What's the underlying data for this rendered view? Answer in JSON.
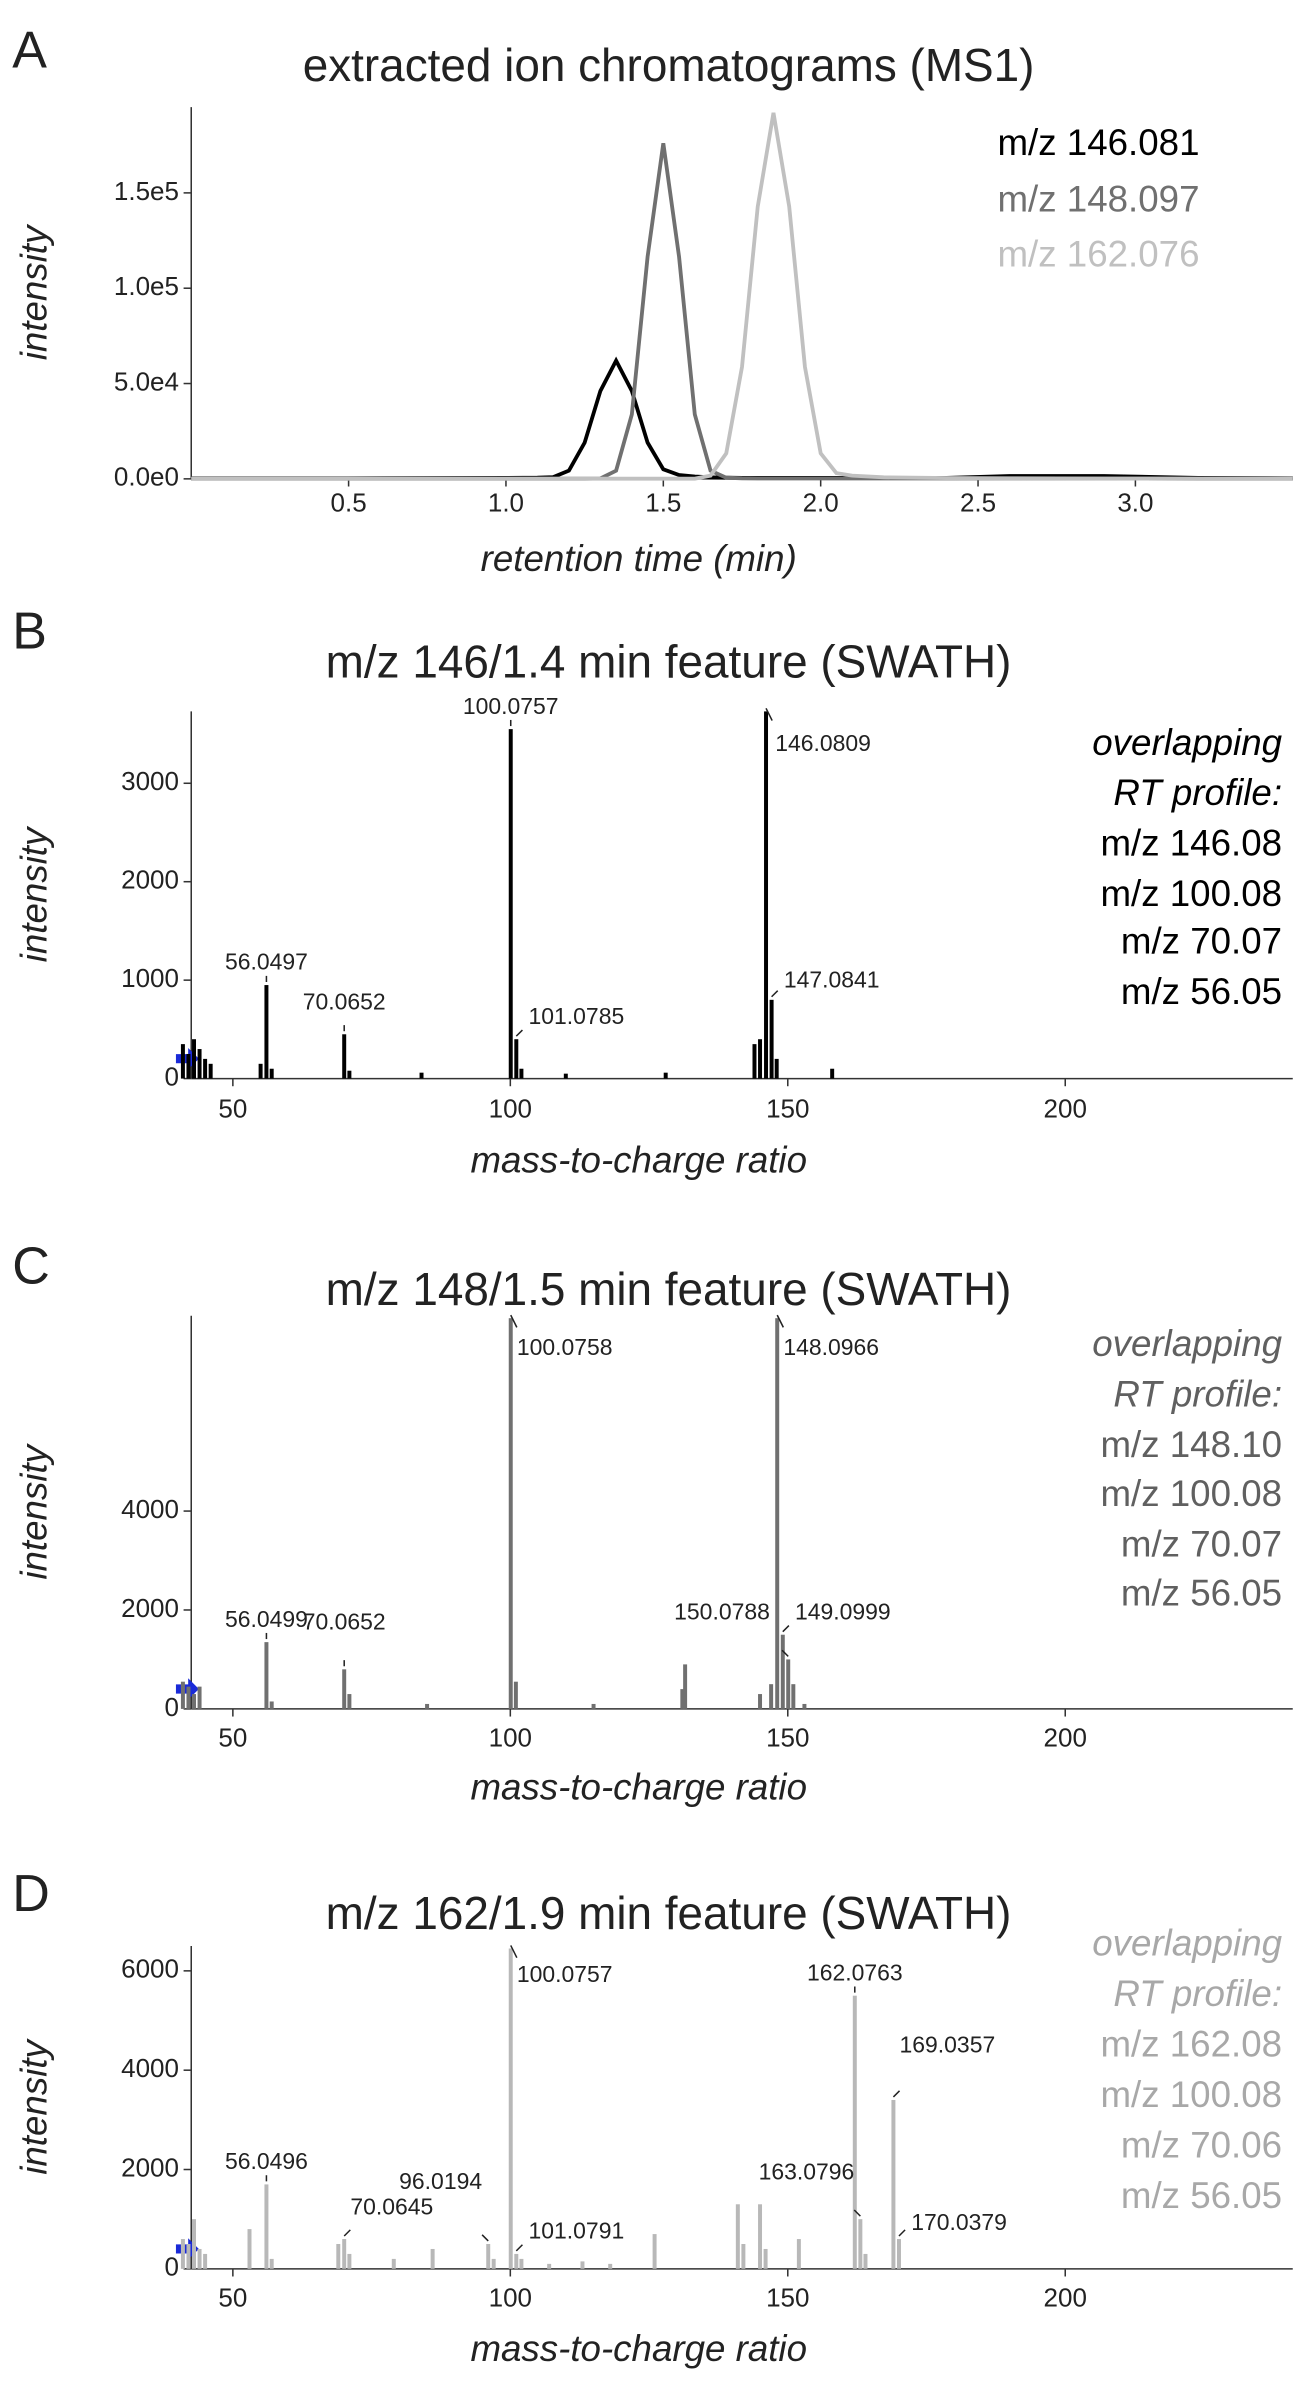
{
  "chart_data": [
    {
      "type": "line",
      "panel_label": "A",
      "title": "extracted ion chromatograms (MS1)",
      "x_label": "retention time (min)",
      "y_label": "intensity",
      "xlim": [
        0,
        3.5
      ],
      "ylim": [
        0,
        195000
      ],
      "xticks": [
        0.5,
        {
          "value": 1,
          "label": "1.0"
        },
        1.5,
        {
          "value": 2,
          "label": "2.0"
        },
        2.5,
        {
          "value": 3,
          "label": "3.0"
        }
      ],
      "yticks": [
        {
          "value": 0,
          "label": "0.0e0"
        },
        {
          "value": 50000,
          "label": "5.0e4"
        },
        {
          "value": 100000,
          "label": "1.0e5"
        },
        {
          "value": 150000,
          "label": "1.5e5"
        }
      ],
      "x": [
        0,
        0.5,
        1.0,
        1.1,
        1.15,
        1.2,
        1.25,
        1.3,
        1.35,
        1.4,
        1.45,
        1.5,
        1.55,
        1.6,
        1.65,
        1.7,
        1.75,
        1.8,
        1.85,
        1.9,
        1.95,
        2.0,
        2.05,
        2.1,
        2.2,
        2.4,
        2.6,
        2.9,
        3.2,
        3.5
      ],
      "series": [
        {
          "name": "m/z 146.081",
          "color": "#000000",
          "values": [
            300,
            300,
            500,
            600,
            900,
            4300,
            19000,
            46100,
            62000,
            46100,
            19000,
            5000,
            2000,
            1200,
            800,
            600,
            500,
            500,
            500,
            500,
            500,
            500,
            500,
            500,
            500,
            500,
            1500,
            1500,
            500,
            300
          ]
        },
        {
          "name": "m/z 148.097",
          "color": "#707070",
          "values": [
            100,
            100,
            100,
            100,
            100,
            100,
            100,
            200,
            4300,
            33800,
            116500,
            176000,
            116500,
            33800,
            4300,
            600,
            300,
            200,
            200,
            200,
            200,
            200,
            200,
            200,
            200,
            200,
            200,
            200,
            100,
            100
          ]
        },
        {
          "name": "m/z 162.076",
          "color": "#c0c0c0",
          "values": [
            100,
            100,
            100,
            100,
            100,
            100,
            100,
            100,
            100,
            100,
            100,
            100,
            100,
            100,
            1700,
            13400,
            58700,
            142800,
            192000,
            142800,
            58700,
            13400,
            3000,
            1700,
            800,
            400,
            300,
            200,
            100,
            100
          ]
        }
      ]
    },
    {
      "type": "bar",
      "panel_label": "B",
      "title": "m/z 146/1.4 min feature (SWATH)",
      "x_label": "mass-to-charge ratio",
      "y_label": "intensity",
      "color": "#000000",
      "note_color": "#000000",
      "xlim": [
        42.5,
        241
      ],
      "ylim": [
        0,
        3730
      ],
      "xticks": [
        50,
        100,
        150,
        200
      ],
      "yticks": [
        0,
        1000,
        2000,
        3000
      ],
      "x": [
        41,
        42,
        43,
        44,
        45,
        46,
        55,
        56.0497,
        57,
        70.0652,
        71,
        84,
        100.0757,
        101.0785,
        102,
        110,
        128,
        144,
        145,
        146.0809,
        147.0841,
        148,
        158
      ],
      "values": [
        350,
        250,
        400,
        300,
        200,
        150,
        150,
        950,
        100,
        450,
        80,
        60,
        3550,
        400,
        100,
        50,
        60,
        350,
        400,
        3730,
        800,
        200,
        100
      ],
      "peak_labels": [
        null,
        null,
        null,
        null,
        null,
        null,
        null,
        "56.0497",
        null,
        "70.0652",
        null,
        null,
        "100.0757",
        "101.0785",
        null,
        null,
        null,
        null,
        null,
        "146.0809",
        "147.0841",
        null,
        null
      ],
      "notes": [
        "overlapping",
        "RT profile:",
        "m/z 146.08",
        "m/z 100.08",
        "m/z 70.07",
        "m/z 56.05"
      ]
    },
    {
      "type": "bar",
      "panel_label": "C",
      "title": "m/z 148/1.5 min feature (SWATH)",
      "x_label": "mass-to-charge ratio",
      "y_label": "intensity",
      "color": "#707070",
      "note_color": "#606060",
      "xlim": [
        42.5,
        241
      ],
      "ylim": [
        0,
        7950
      ],
      "xticks": [
        50,
        100,
        150,
        200
      ],
      "yticks": [
        0,
        2000,
        4000
      ],
      "x": [
        41,
        42,
        43,
        44,
        56.0499,
        57,
        70.0652,
        71,
        85,
        100.0758,
        101,
        115,
        131,
        131.5,
        145,
        147,
        148.0966,
        149.0999,
        150.0788,
        151,
        153
      ],
      "values": [
        550,
        450,
        300,
        450,
        1350,
        150,
        800,
        300,
        100,
        7900,
        550,
        100,
        400,
        900,
        300,
        500,
        7900,
        1500,
        1000,
        500,
        100
      ],
      "peak_labels": [
        null,
        null,
        null,
        null,
        "56.0499",
        null,
        "70.0652",
        null,
        null,
        "100.0758",
        null,
        null,
        null,
        null,
        null,
        null,
        "148.0966",
        "149.0999",
        "150.0788",
        null,
        null
      ],
      "notes": [
        "overlapping",
        "RT profile:",
        "m/z 148.10",
        "m/z 100.08",
        "m/z 70.07",
        "m/z 56.05"
      ]
    },
    {
      "type": "bar",
      "panel_label": "D",
      "title": "m/z 162/1.9 min feature (SWATH)",
      "x_label": "mass-to-charge ratio",
      "y_label": "intensity",
      "color": "#b8b8b8",
      "note_color": "#a8a8a8",
      "xlim": [
        42.5,
        241
      ],
      "ylim": [
        0,
        6500
      ],
      "xticks": [
        50,
        100,
        150,
        200
      ],
      "yticks": [
        0,
        2000,
        4000,
        6000
      ],
      "x": [
        41,
        42,
        43,
        44,
        45,
        53,
        56.0496,
        57,
        69,
        70.0645,
        71,
        79,
        86,
        96.0194,
        97,
        100.0757,
        101.0791,
        102,
        107,
        113,
        118,
        126,
        141,
        142,
        145,
        146,
        152,
        162.0763,
        163.0796,
        164,
        169.0357,
        170.0379
      ],
      "values": [
        600,
        500,
        1000,
        400,
        300,
        800,
        1700,
        200,
        500,
        600,
        300,
        200,
        400,
        500,
        200,
        6450,
        300,
        200,
        100,
        150,
        100,
        700,
        1300,
        500,
        1300,
        400,
        600,
        5500,
        1000,
        300,
        3400,
        600
      ],
      "peak_labels": [
        null,
        null,
        null,
        null,
        null,
        null,
        "56.0496",
        null,
        null,
        "70.0645",
        null,
        null,
        null,
        "96.0194",
        null,
        "100.0757",
        "101.0791",
        null,
        null,
        null,
        null,
        null,
        null,
        null,
        null,
        null,
        null,
        "162.0763",
        "163.0796",
        null,
        "169.0357",
        "170.0379"
      ],
      "notes": [
        "overlapping",
        "RT profile:",
        "m/z 162.08",
        "m/z 100.08",
        "m/z 70.06",
        "m/z 56.05"
      ]
    }
  ]
}
